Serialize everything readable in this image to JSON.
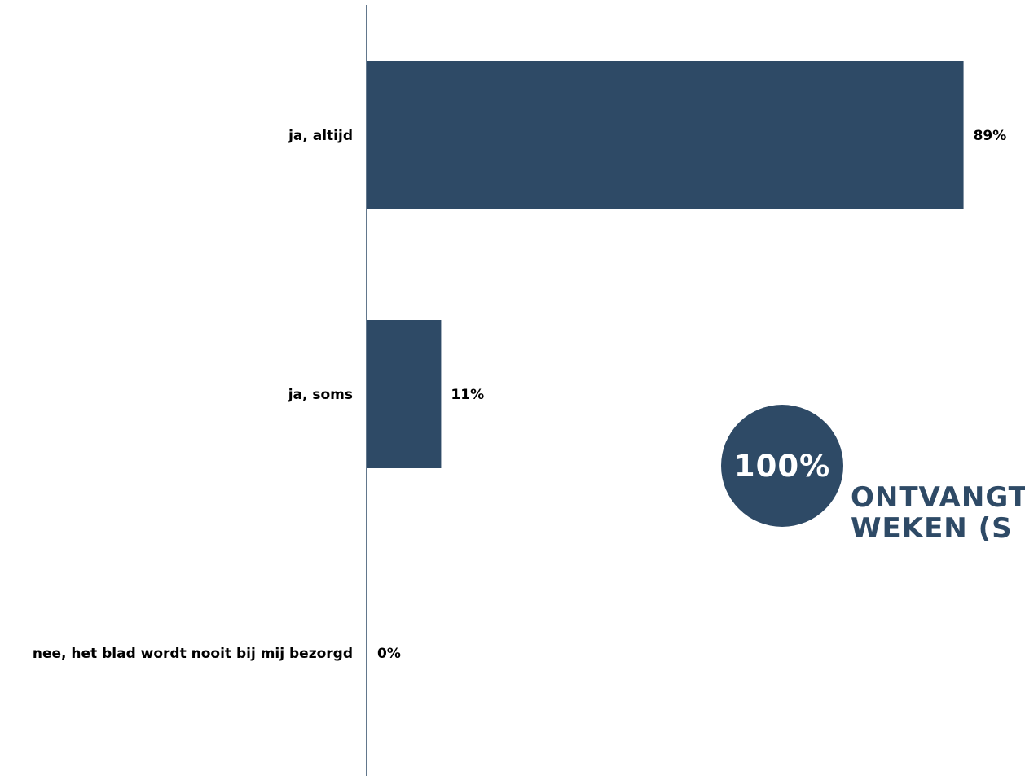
{
  "chart_data": {
    "type": "bar",
    "orientation": "horizontal",
    "categories": [
      "ja, altijd",
      "ja, soms",
      "nee, het blad wordt nooit bij mij bezorgd"
    ],
    "values": [
      89,
      11,
      0
    ],
    "value_labels": [
      "89%",
      "11%",
      "0%"
    ],
    "unit": "%",
    "xlim": [
      0,
      100
    ],
    "grid": false,
    "legend": "none",
    "bar_color": "#2e4a66"
  },
  "callout": {
    "value": "100%",
    "text_lines": [
      "ONTVANGT",
      "WEKEN (S"
    ],
    "color": "#2e4a66"
  }
}
